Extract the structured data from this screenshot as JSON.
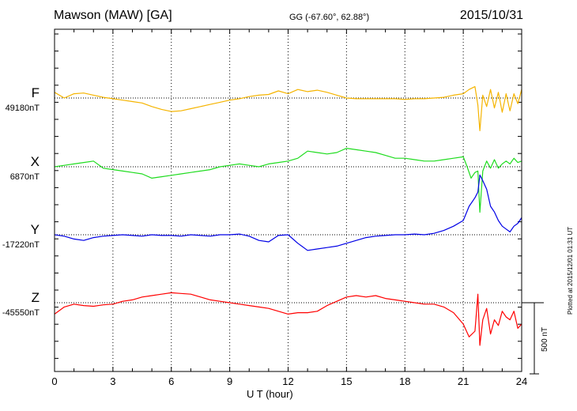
{
  "header": {
    "title": "Mawson (MAW)  [GA]",
    "coords": "GG (-67.60°,  62.88°)",
    "date": "2015/10/31"
  },
  "footer": {
    "plotted": "Plotted at 2015/12/01 01:31  UT",
    "scale_label": "500 nT"
  },
  "colors": {
    "F": "#f5b400",
    "X": "#1fdc1f",
    "Y": "#0000e6",
    "Z": "#ff0000"
  },
  "chart_data": {
    "type": "line",
    "xlabel": "U T (hour)",
    "xlim": [
      0,
      24
    ],
    "xticks": [
      0,
      3,
      6,
      9,
      12,
      15,
      18,
      21,
      24
    ],
    "grid": true,
    "scale_nT": 500,
    "series": [
      {
        "name": "F",
        "baseline_label": "49180nT",
        "baseline_nT": 49180,
        "x": [
          0,
          0.5,
          1,
          1.5,
          2,
          2.5,
          3,
          3.5,
          4,
          4.5,
          5,
          5.5,
          6,
          6.5,
          7,
          7.5,
          8,
          8.5,
          9,
          9.5,
          10,
          10.5,
          11,
          11.5,
          12,
          12.5,
          13,
          13.5,
          14,
          14.5,
          15,
          15.5,
          16,
          16.5,
          17,
          17.5,
          18,
          18.5,
          19,
          19.5,
          20,
          20.5,
          21,
          21.3,
          21.6,
          21.75,
          21.85,
          22,
          22.2,
          22.4,
          22.6,
          22.8,
          23,
          23.2,
          23.4,
          23.6,
          23.8,
          24
        ],
        "values": [
          40,
          0,
          30,
          35,
          20,
          5,
          -5,
          -15,
          -25,
          -35,
          -60,
          -80,
          -95,
          -90,
          -75,
          -60,
          -45,
          -30,
          -15,
          -5,
          10,
          20,
          25,
          50,
          30,
          60,
          45,
          55,
          40,
          20,
          0,
          -5,
          -5,
          -5,
          -5,
          -5,
          -10,
          -5,
          -5,
          0,
          5,
          20,
          30,
          60,
          80,
          -50,
          -230,
          20,
          -60,
          60,
          -70,
          40,
          -100,
          30,
          -90,
          30,
          -40,
          60
        ]
      },
      {
        "name": "X",
        "baseline_label": "6870nT",
        "baseline_nT": 6870,
        "x": [
          0,
          0.5,
          1,
          1.5,
          2,
          2.5,
          3,
          3.5,
          4,
          4.5,
          5,
          5.5,
          6,
          6.5,
          7,
          7.5,
          8,
          8.5,
          9,
          9.5,
          10,
          10.5,
          11,
          11.5,
          12,
          12.5,
          13,
          13.5,
          14,
          14.5,
          15,
          15.5,
          16,
          16.5,
          17,
          17.5,
          18,
          18.5,
          19,
          19.5,
          20,
          20.5,
          21,
          21.2,
          21.4,
          21.6,
          21.75,
          21.85,
          22,
          22.2,
          22.4,
          22.6,
          22.8,
          23,
          23.2,
          23.4,
          23.6,
          23.8,
          24
        ],
        "values": [
          0,
          10,
          20,
          30,
          40,
          -10,
          -20,
          -30,
          -40,
          -50,
          -80,
          -70,
          -60,
          -50,
          -40,
          -30,
          -20,
          0,
          10,
          20,
          10,
          0,
          20,
          30,
          40,
          60,
          110,
          100,
          90,
          100,
          130,
          120,
          110,
          100,
          80,
          60,
          60,
          50,
          40,
          40,
          50,
          60,
          70,
          0,
          -80,
          -40,
          -30,
          -320,
          -30,
          40,
          -10,
          50,
          -10,
          20,
          40,
          20,
          60,
          30,
          40
        ]
      },
      {
        "name": "Y",
        "baseline_label": "-17220nT",
        "baseline_nT": -17220,
        "x": [
          0,
          0.5,
          1,
          1.5,
          2,
          2.5,
          3,
          3.5,
          4,
          4.5,
          5,
          5.5,
          6,
          6.5,
          7,
          7.5,
          8,
          8.5,
          9,
          9.5,
          10,
          10.5,
          11,
          11.5,
          12,
          12.5,
          13,
          13.5,
          14,
          14.5,
          15,
          15.5,
          16,
          16.5,
          17,
          17.5,
          18,
          18.5,
          19,
          19.5,
          20,
          20.5,
          21,
          21.3,
          21.6,
          21.75,
          21.85,
          22,
          22.2,
          22.4,
          22.6,
          22.8,
          23,
          23.2,
          23.4,
          23.6,
          23.8,
          24
        ],
        "values": [
          0,
          -10,
          -30,
          -40,
          -20,
          -10,
          -5,
          0,
          -5,
          -10,
          0,
          -5,
          -5,
          -10,
          0,
          -5,
          -10,
          0,
          0,
          5,
          -10,
          -40,
          -50,
          -5,
          0,
          -60,
          -110,
          -100,
          -90,
          -80,
          -60,
          -40,
          -20,
          -10,
          -5,
          0,
          0,
          5,
          0,
          10,
          30,
          60,
          100,
          200,
          260,
          300,
          420,
          380,
          320,
          200,
          160,
          100,
          60,
          40,
          20,
          60,
          80,
          120
        ]
      },
      {
        "name": "Z",
        "baseline_label": "-45550nT",
        "baseline_nT": -45550,
        "x": [
          0,
          0.5,
          1,
          1.5,
          2,
          2.5,
          3,
          3.5,
          4,
          4.5,
          5,
          5.5,
          6,
          6.5,
          7,
          7.5,
          8,
          8.5,
          9,
          9.5,
          10,
          10.5,
          11,
          11.5,
          12,
          12.5,
          13,
          13.5,
          14,
          14.5,
          15,
          15.5,
          16,
          16.5,
          17,
          17.5,
          18,
          18.5,
          19,
          19.5,
          20,
          20.5,
          21,
          21.3,
          21.6,
          21.75,
          21.85,
          22,
          22.2,
          22.4,
          22.6,
          22.8,
          23,
          23.2,
          23.4,
          23.6,
          23.8,
          24
        ],
        "values": [
          -80,
          -30,
          -10,
          -20,
          -25,
          -15,
          -10,
          10,
          20,
          40,
          50,
          60,
          70,
          65,
          60,
          40,
          20,
          10,
          0,
          -10,
          -20,
          -30,
          -40,
          -60,
          -80,
          -70,
          -70,
          -60,
          -20,
          10,
          40,
          50,
          40,
          50,
          30,
          20,
          10,
          0,
          -10,
          -10,
          -30,
          -70,
          -150,
          -240,
          -200,
          60,
          -300,
          -120,
          -40,
          -220,
          -120,
          -160,
          -60,
          -100,
          -120,
          -60,
          -180,
          -150
        ]
      }
    ]
  }
}
